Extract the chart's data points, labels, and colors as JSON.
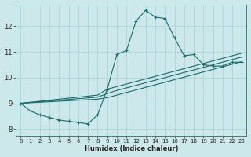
{
  "xlabel": "Humidex (Indice chaleur)",
  "bg_color": "#cde8ea",
  "grid_color": "#b0d8dc",
  "line_color": "#1a6b6b",
  "xlim": [
    -0.5,
    23.5
  ],
  "ylim": [
    7.75,
    12.85
  ],
  "xticks": [
    0,
    1,
    2,
    3,
    4,
    5,
    6,
    7,
    8,
    9,
    10,
    11,
    12,
    13,
    14,
    15,
    16,
    17,
    18,
    19,
    20,
    21,
    22,
    23
  ],
  "yticks": [
    8,
    9,
    10,
    11,
    12
  ],
  "curve1_x": [
    0,
    1,
    2,
    3,
    4,
    5,
    6,
    7,
    8,
    9,
    10,
    11,
    12,
    13,
    14,
    15,
    16,
    17,
    18,
    19,
    20,
    21,
    22,
    23
  ],
  "curve1_y": [
    9.0,
    8.7,
    8.55,
    8.45,
    8.35,
    8.3,
    8.25,
    8.2,
    8.55,
    9.55,
    10.9,
    11.05,
    12.2,
    12.62,
    12.35,
    12.3,
    11.55,
    10.85,
    10.9,
    10.5,
    10.45,
    10.45,
    10.6,
    10.6
  ],
  "curve2_x": [
    0,
    1,
    2,
    3,
    4,
    5,
    6,
    7,
    8,
    9,
    10,
    11,
    12,
    13,
    14,
    15,
    16,
    17,
    18,
    19,
    20,
    21,
    22,
    23
  ],
  "curve2_y": [
    9.0,
    9.04,
    9.08,
    9.12,
    9.16,
    9.2,
    9.24,
    9.28,
    9.32,
    9.55,
    9.65,
    9.75,
    9.85,
    9.95,
    10.05,
    10.15,
    10.25,
    10.35,
    10.45,
    10.55,
    10.65,
    10.75,
    10.85,
    10.95
  ],
  "curve3_x": [
    0,
    1,
    2,
    3,
    4,
    5,
    6,
    7,
    8,
    9,
    10,
    11,
    12,
    13,
    14,
    15,
    16,
    17,
    18,
    19,
    20,
    21,
    22,
    23
  ],
  "curve3_y": [
    9.0,
    9.03,
    9.06,
    9.09,
    9.12,
    9.15,
    9.18,
    9.21,
    9.24,
    9.38,
    9.5,
    9.6,
    9.7,
    9.8,
    9.9,
    10.0,
    10.1,
    10.2,
    10.3,
    10.4,
    10.5,
    10.6,
    10.7,
    10.8
  ],
  "curve4_x": [
    0,
    1,
    2,
    3,
    4,
    5,
    6,
    7,
    8,
    9,
    10,
    11,
    12,
    13,
    14,
    15,
    16,
    17,
    18,
    19,
    20,
    21,
    22,
    23
  ],
  "curve4_y": [
    9.0,
    9.02,
    9.04,
    9.06,
    9.08,
    9.1,
    9.12,
    9.14,
    9.16,
    9.22,
    9.32,
    9.42,
    9.52,
    9.62,
    9.72,
    9.82,
    9.92,
    10.02,
    10.12,
    10.22,
    10.32,
    10.42,
    10.52,
    10.62
  ]
}
